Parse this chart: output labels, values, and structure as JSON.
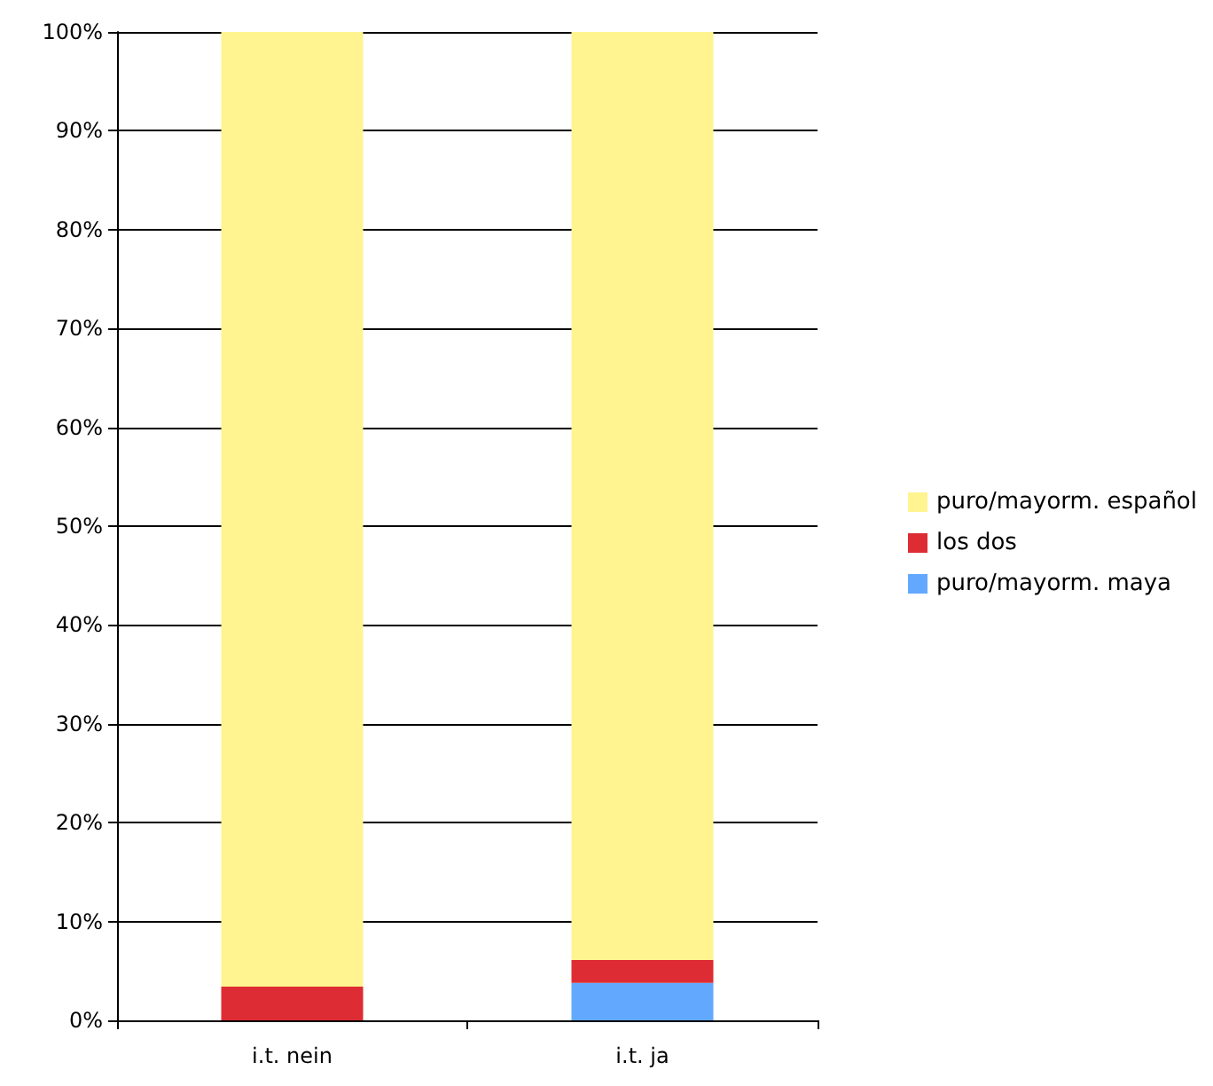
{
  "chart_data": {
    "type": "bar",
    "stacked": true,
    "categories": [
      "i.t. nein",
      "i.t. ja"
    ],
    "series": [
      {
        "name": "puro/mayorm. maya",
        "color": "#63a8ff",
        "values": [
          0,
          3.8
        ]
      },
      {
        "name": "los dos",
        "color": "#dd2c33",
        "values": [
          3.4,
          2.3
        ]
      },
      {
        "name": "puro/mayorm. español",
        "color": "#fff48f",
        "values": [
          96.6,
          93.9
        ]
      }
    ],
    "ylim": [
      0,
      100
    ],
    "yticks": [
      {
        "value": 0,
        "label": "0%"
      },
      {
        "value": 10,
        "label": "10%"
      },
      {
        "value": 20,
        "label": "20%"
      },
      {
        "value": 30,
        "label": "30%"
      },
      {
        "value": 40,
        "label": "40%"
      },
      {
        "value": 50,
        "label": "50%"
      },
      {
        "value": 60,
        "label": "60%"
      },
      {
        "value": 70,
        "label": "70%"
      },
      {
        "value": 80,
        "label": "80%"
      },
      {
        "value": 90,
        "label": "90%"
      },
      {
        "value": 100,
        "label": "100%"
      }
    ],
    "grid": "y",
    "legend": "right"
  }
}
